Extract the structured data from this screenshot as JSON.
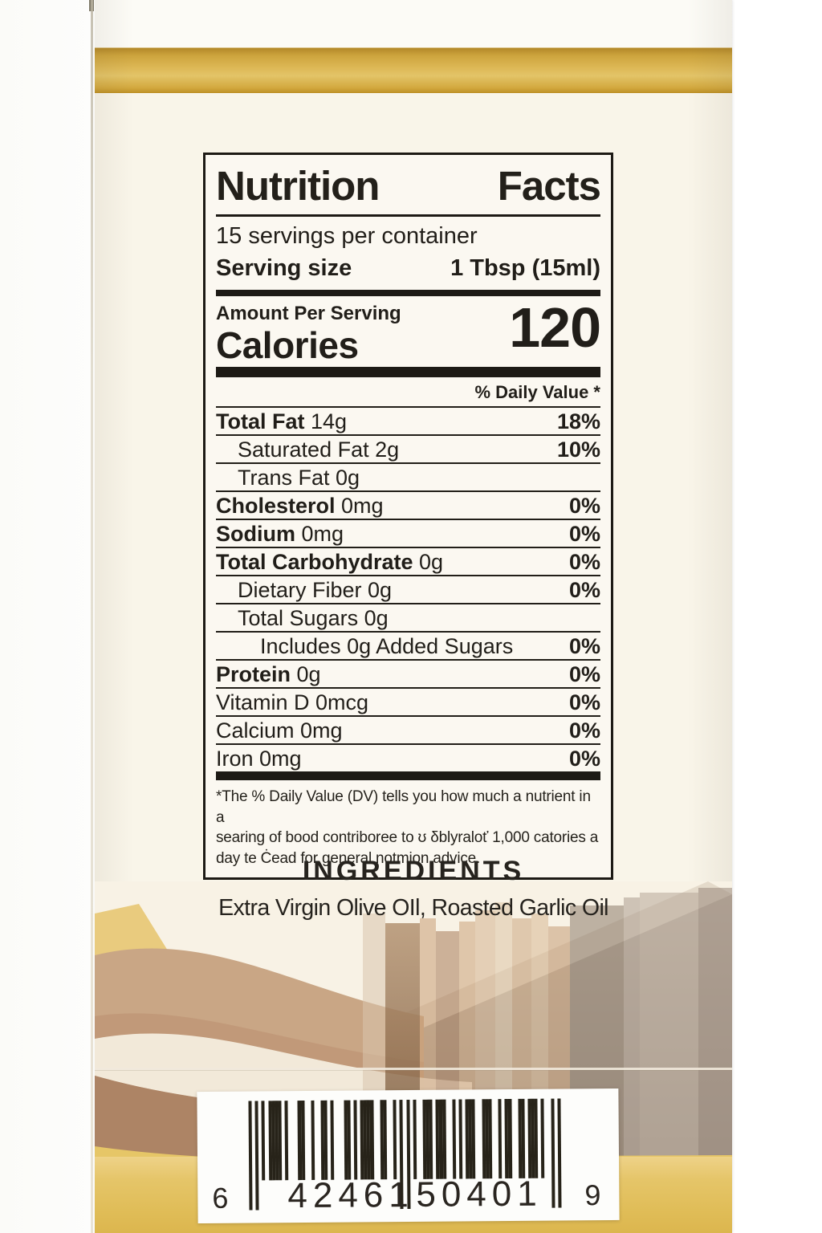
{
  "nutrition": {
    "title_word1": "Nutrition",
    "title_word2": "Facts",
    "servings_per_container": "15 servings per container",
    "serving_size_label": "Serving size",
    "serving_size_value": "1 Tbsp (15ml)",
    "amount_per_serving": "Amount Per Serving",
    "calories_label": "Calories",
    "calories_value": "120",
    "daily_value_header": "% Daily Value *",
    "rows": [
      {
        "name": "Total Fat",
        "amount": "14g",
        "dv": "18%",
        "bold": true,
        "indent": 0
      },
      {
        "name": "Saturated Fat",
        "amount": "2g",
        "dv": "10%",
        "bold": false,
        "indent": 1
      },
      {
        "name": "Trans Fat",
        "amount": "0g",
        "dv": "",
        "bold": false,
        "indent": 1
      },
      {
        "name": "Cholesterol",
        "amount": "0mg",
        "dv": "0%",
        "bold": true,
        "indent": 0
      },
      {
        "name": "Sodium",
        "amount": "0mg",
        "dv": "0%",
        "bold": true,
        "indent": 0
      },
      {
        "name": "Total Carbohydrate",
        "amount": "0g",
        "dv": "0%",
        "bold": true,
        "indent": 0
      },
      {
        "name": "Dietary Fiber",
        "amount": "0g",
        "dv": "0%",
        "bold": false,
        "indent": 1
      },
      {
        "name": "Total Sugars",
        "amount": "0g",
        "dv": "",
        "bold": false,
        "indent": 1
      },
      {
        "name": "Includes 0g Added Sugars",
        "amount": "",
        "dv": "0%",
        "bold": false,
        "indent": 2
      },
      {
        "name": "Protein",
        "amount": "0g",
        "dv": "0%",
        "bold": true,
        "indent": 0
      },
      {
        "name": "Vitamin D",
        "amount": "0mcg",
        "dv": "0%",
        "bold": false,
        "indent": 0
      },
      {
        "name": "Calcium",
        "amount": "0mg",
        "dv": "0%",
        "bold": false,
        "indent": 0
      },
      {
        "name": "Iron",
        "amount": "0mg",
        "dv": "0%",
        "bold": false,
        "indent": 0
      }
    ],
    "footnote_lines": [
      "*The % Daily Value (DV) tells you how much a nutrient in a",
      "searing of bood contriboree to ʊ δblyraloť 1,000 catories a",
      "day te Ċead for general notmion advice."
    ]
  },
  "ingredients": {
    "heading": "INGREDIENTS",
    "text": "Extra Virgin Olive OIl, Roasted Garlic Oil"
  },
  "barcode": {
    "digits": "642461504019",
    "groups": [
      "6",
      "42461",
      "50401",
      "9"
    ]
  },
  "colors": {
    "gold_band_top": "#d5ab42",
    "gold_band_bottom": "#e3c162",
    "label_cream": "#f9f5e9",
    "ink": "#211e19"
  }
}
